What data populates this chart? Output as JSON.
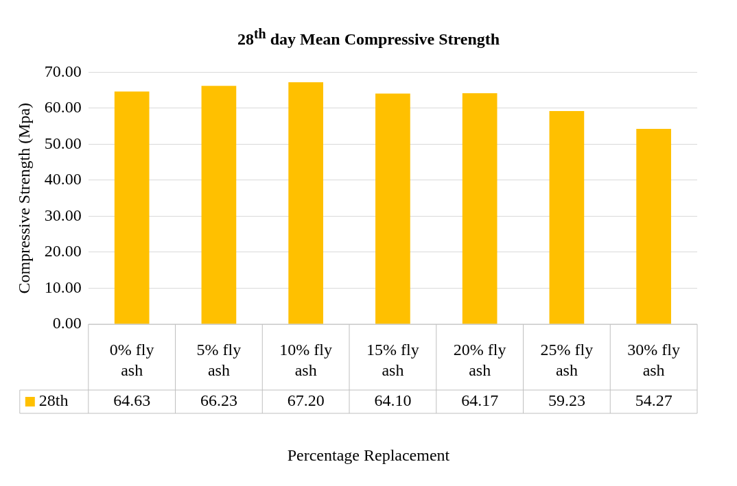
{
  "chart_data": {
    "type": "bar",
    "title": "28$^{th}$ day Mean Compressive Strength",
    "xlabel": "Percentage Replacement",
    "ylabel": "Compressive Strength (Mpa)",
    "categories": [
      "0% fly ash",
      "5% fly ash",
      "10% fly ash",
      "15% fly ash",
      "20% fly ash",
      "25% fly ash",
      "30% fly ash"
    ],
    "series": [
      {
        "name": "28th",
        "color": "#ffc000",
        "values": [
          64.63,
          66.23,
          67.2,
          64.1,
          64.17,
          59.23,
          54.27
        ],
        "value_labels": [
          "64.63",
          "66.23",
          "67.20",
          "64.10",
          "64.17",
          "59.23",
          "54.27"
        ]
      }
    ],
    "ylim": [
      0,
      70
    ],
    "yticks": [
      {
        "value": 0,
        "label": "0.00"
      },
      {
        "value": 10,
        "label": "10.00"
      },
      {
        "value": 20,
        "label": "20.00"
      },
      {
        "value": 30,
        "label": "30.00"
      },
      {
        "value": 40,
        "label": "40.00"
      },
      {
        "value": 50,
        "label": "50.00"
      },
      {
        "value": 60,
        "label": "60.00"
      },
      {
        "value": 70,
        "label": "70.00"
      }
    ],
    "grid": "y",
    "legend": "bottom"
  }
}
